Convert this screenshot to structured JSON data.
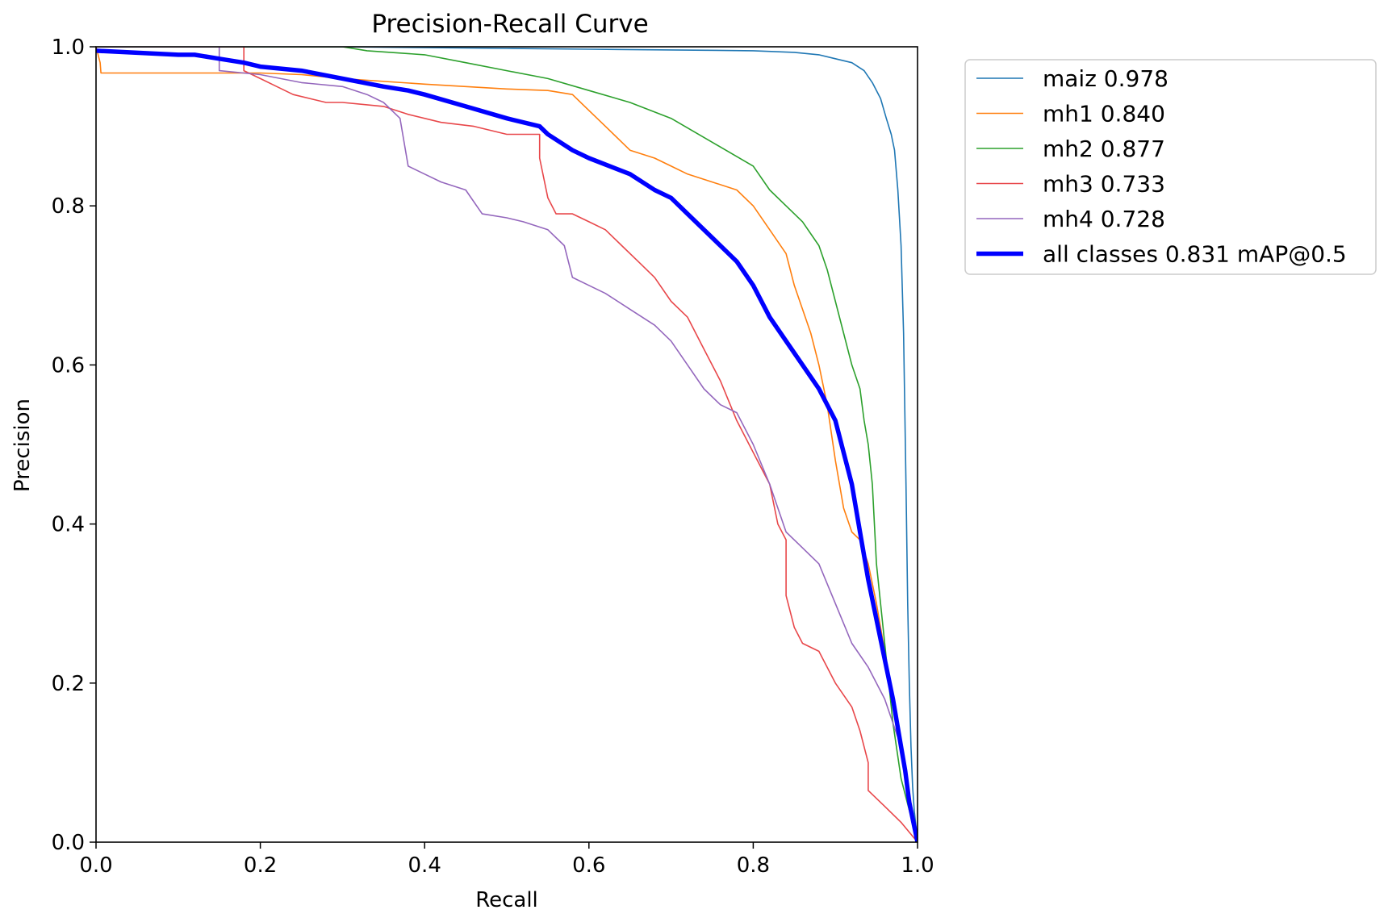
{
  "chart_data": {
    "type": "line",
    "title": "Precision-Recall Curve",
    "xlabel": "Recall",
    "ylabel": "Precision",
    "xlim": [
      0,
      1
    ],
    "ylim": [
      0,
      1
    ],
    "xticks": [
      "0.0",
      "0.2",
      "0.4",
      "0.6",
      "0.8",
      "1.0"
    ],
    "yticks": [
      "0.0",
      "0.2",
      "0.4",
      "0.6",
      "0.8",
      "1.0"
    ],
    "grid": false,
    "legend_position": "outside-top-right",
    "series": [
      {
        "name": "maiz 0.978",
        "color": "#1f77b4",
        "width": 1.6,
        "x": [
          0,
          0.3,
          0.5,
          0.6,
          0.7,
          0.8,
          0.85,
          0.88,
          0.9,
          0.92,
          0.935,
          0.945,
          0.955,
          0.962,
          0.968,
          0.972,
          0.976,
          0.98,
          0.983,
          0.986,
          0.988,
          0.99,
          0.992,
          0.994,
          0.996,
          0.998,
          1.0
        ],
        "y": [
          1.0,
          1.0,
          0.998,
          0.997,
          0.996,
          0.995,
          0.993,
          0.99,
          0.985,
          0.98,
          0.97,
          0.955,
          0.935,
          0.91,
          0.89,
          0.87,
          0.82,
          0.75,
          0.64,
          0.45,
          0.3,
          0.2,
          0.12,
          0.07,
          0.04,
          0.02,
          0.0
        ]
      },
      {
        "name": "mh1 0.840",
        "color": "#ff7f0e",
        "width": 1.6,
        "x": [
          0,
          0.005,
          0.006,
          0.1,
          0.2,
          0.25,
          0.3,
          0.4,
          0.5,
          0.55,
          0.58,
          0.6,
          0.62,
          0.65,
          0.68,
          0.7,
          0.72,
          0.75,
          0.78,
          0.8,
          0.82,
          0.84,
          0.85,
          0.86,
          0.87,
          0.88,
          0.89,
          0.9,
          0.91,
          0.92,
          0.93,
          0.94,
          0.95,
          0.96,
          0.97,
          0.98,
          0.99,
          1.0
        ],
        "y": [
          1.0,
          0.98,
          0.967,
          0.967,
          0.967,
          0.965,
          0.96,
          0.953,
          0.947,
          0.945,
          0.94,
          0.92,
          0.9,
          0.87,
          0.86,
          0.85,
          0.84,
          0.83,
          0.82,
          0.8,
          0.77,
          0.74,
          0.7,
          0.67,
          0.64,
          0.6,
          0.55,
          0.48,
          0.42,
          0.39,
          0.38,
          0.35,
          0.3,
          0.24,
          0.18,
          0.12,
          0.05,
          0.0
        ]
      },
      {
        "name": "mh2 0.877",
        "color": "#2ca02c",
        "width": 1.6,
        "x": [
          0,
          0.3,
          0.33,
          0.4,
          0.45,
          0.5,
          0.55,
          0.6,
          0.65,
          0.7,
          0.75,
          0.8,
          0.82,
          0.84,
          0.86,
          0.88,
          0.89,
          0.9,
          0.91,
          0.92,
          0.93,
          0.935,
          0.94,
          0.945,
          0.95,
          0.96,
          0.97,
          0.98,
          0.99,
          1.0
        ],
        "y": [
          1.0,
          1.0,
          0.995,
          0.99,
          0.98,
          0.97,
          0.96,
          0.945,
          0.93,
          0.91,
          0.88,
          0.85,
          0.82,
          0.8,
          0.78,
          0.75,
          0.72,
          0.68,
          0.64,
          0.6,
          0.57,
          0.53,
          0.5,
          0.45,
          0.35,
          0.25,
          0.15,
          0.08,
          0.04,
          0.0
        ]
      },
      {
        "name": "mh3 0.733",
        "color": "#e8474a",
        "width": 1.6,
        "x": [
          0,
          0.18,
          0.18,
          0.2,
          0.22,
          0.24,
          0.26,
          0.28,
          0.3,
          0.35,
          0.38,
          0.42,
          0.46,
          0.5,
          0.54,
          0.54,
          0.55,
          0.56,
          0.58,
          0.6,
          0.62,
          0.64,
          0.66,
          0.68,
          0.7,
          0.72,
          0.74,
          0.76,
          0.78,
          0.8,
          0.82,
          0.83,
          0.84,
          0.84,
          0.85,
          0.86,
          0.88,
          0.9,
          0.92,
          0.93,
          0.94,
          0.94,
          0.96,
          0.98,
          1.0
        ],
        "y": [
          1.0,
          1.0,
          0.97,
          0.96,
          0.95,
          0.94,
          0.935,
          0.93,
          0.93,
          0.925,
          0.915,
          0.905,
          0.9,
          0.89,
          0.89,
          0.86,
          0.81,
          0.79,
          0.79,
          0.78,
          0.77,
          0.75,
          0.73,
          0.71,
          0.68,
          0.66,
          0.62,
          0.58,
          0.53,
          0.49,
          0.45,
          0.4,
          0.38,
          0.31,
          0.27,
          0.25,
          0.24,
          0.2,
          0.17,
          0.14,
          0.1,
          0.065,
          0.045,
          0.025,
          0.0
        ]
      },
      {
        "name": "mh4 0.728",
        "color": "#9467bd",
        "width": 1.6,
        "x": [
          0,
          0.15,
          0.15,
          0.2,
          0.25,
          0.3,
          0.33,
          0.35,
          0.37,
          0.38,
          0.4,
          0.42,
          0.45,
          0.47,
          0.5,
          0.52,
          0.55,
          0.57,
          0.58,
          0.6,
          0.62,
          0.65,
          0.68,
          0.7,
          0.72,
          0.74,
          0.76,
          0.78,
          0.8,
          0.82,
          0.84,
          0.85,
          0.86,
          0.88,
          0.9,
          0.92,
          0.94,
          0.96,
          0.98,
          1.0
        ],
        "y": [
          1.0,
          1.0,
          0.97,
          0.965,
          0.955,
          0.95,
          0.94,
          0.93,
          0.91,
          0.85,
          0.84,
          0.83,
          0.82,
          0.79,
          0.785,
          0.78,
          0.77,
          0.75,
          0.71,
          0.7,
          0.69,
          0.67,
          0.65,
          0.63,
          0.6,
          0.57,
          0.55,
          0.54,
          0.5,
          0.45,
          0.39,
          0.38,
          0.37,
          0.35,
          0.3,
          0.25,
          0.22,
          0.18,
          0.12,
          0.0
        ]
      },
      {
        "name": "all classes 0.831 mAP@0.5",
        "color": "#0000ff",
        "width": 5.5,
        "x": [
          0,
          0.1,
          0.12,
          0.15,
          0.18,
          0.2,
          0.25,
          0.3,
          0.35,
          0.38,
          0.4,
          0.45,
          0.5,
          0.54,
          0.55,
          0.58,
          0.6,
          0.65,
          0.68,
          0.7,
          0.72,
          0.75,
          0.78,
          0.8,
          0.81,
          0.82,
          0.84,
          0.86,
          0.88,
          0.9,
          0.91,
          0.92,
          0.93,
          0.94,
          0.95,
          0.96,
          0.97,
          0.98,
          0.985,
          0.99,
          0.995,
          1.0
        ],
        "y": [
          0.995,
          0.99,
          0.99,
          0.985,
          0.98,
          0.975,
          0.97,
          0.96,
          0.95,
          0.945,
          0.94,
          0.925,
          0.91,
          0.9,
          0.89,
          0.87,
          0.86,
          0.84,
          0.82,
          0.81,
          0.79,
          0.76,
          0.73,
          0.7,
          0.68,
          0.66,
          0.63,
          0.6,
          0.57,
          0.53,
          0.49,
          0.45,
          0.39,
          0.33,
          0.28,
          0.23,
          0.18,
          0.12,
          0.09,
          0.05,
          0.025,
          0.0
        ]
      }
    ]
  }
}
